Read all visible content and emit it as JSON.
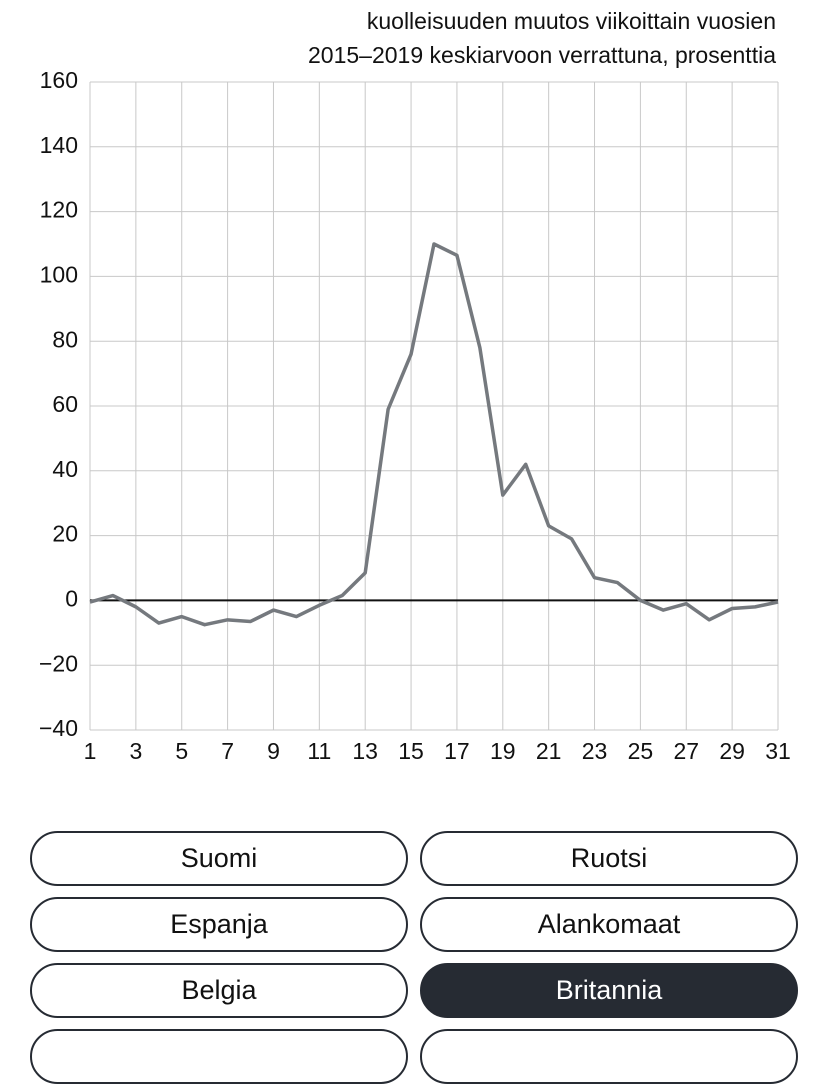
{
  "chart_data": {
    "type": "line",
    "title": [
      "kuolleisuuden muutos viikoittain vuosien",
      "2015–2019 keskiarvoon verrattuna, prosenttia"
    ],
    "x": [
      1,
      2,
      3,
      4,
      5,
      6,
      7,
      8,
      9,
      10,
      11,
      12,
      13,
      14,
      15,
      16,
      17,
      18,
      19,
      20,
      21,
      22,
      23,
      24,
      25,
      26,
      27,
      28,
      29,
      30,
      31
    ],
    "series": [
      {
        "color": "#75797e",
        "values": [
          -0.5,
          1.5,
          -2,
          -7,
          -5,
          -7.5,
          -6,
          -6.5,
          -3,
          -5,
          -1.5,
          1.5,
          8.5,
          59,
          76,
          110,
          106.5,
          78,
          32.5,
          42,
          23,
          19,
          7,
          5.5,
          0,
          -3,
          -1,
          -6,
          -2.5,
          -2,
          -0.5
        ]
      }
    ],
    "xlim": [
      1,
      31
    ],
    "xticks": [
      1,
      3,
      5,
      7,
      9,
      11,
      13,
      15,
      17,
      19,
      21,
      23,
      25,
      27,
      29,
      31
    ],
    "ylim": [
      -40,
      160
    ],
    "yticks": [
      {
        "value": -40,
        "label": "−40"
      },
      {
        "value": -20,
        "label": "−20"
      },
      0,
      20,
      40,
      60,
      80,
      100,
      120,
      140,
      160
    ],
    "grid": true
  },
  "buttons": [
    {
      "label": "Suomi"
    },
    {
      "label": "Ruotsi"
    },
    {
      "label": "Espanja"
    },
    {
      "label": "Alankomaat"
    },
    {
      "label": "Belgia"
    },
    {
      "label": "Britannia",
      "active": true
    }
  ]
}
